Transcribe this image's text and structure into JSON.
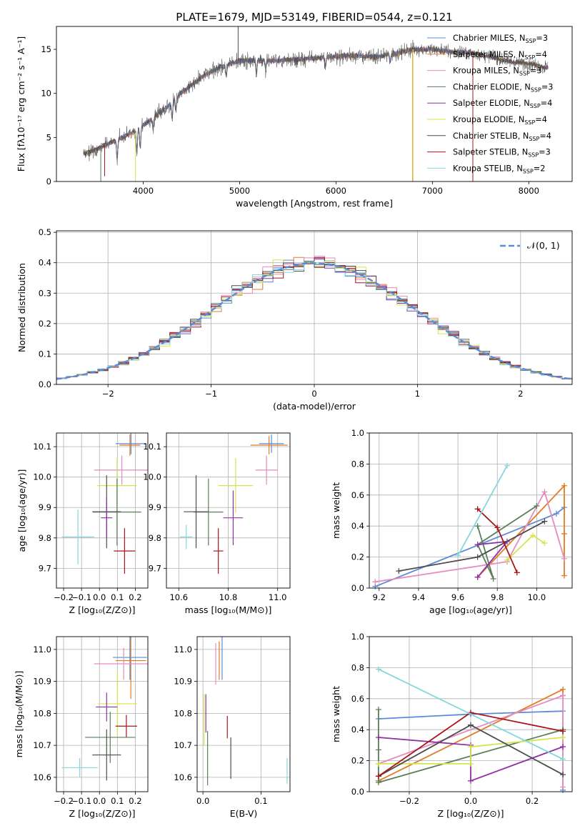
{
  "header": {
    "title": "PLATE=1679, MJD=53149, FIBERID=0544, z=0.121"
  },
  "colors": {
    "Chabrier MILES": "#5b8ad7",
    "Salpeter MILES": "#e07b26",
    "Kroupa MILES": "#e58bbf",
    "Chabrier ELODIE": "#5c7e5a",
    "Salpeter ELODIE": "#9130a5",
    "Kroupa ELODIE": "#d5e54e",
    "Chabrier STELIB": "#4d4d4d",
    "Salpeter STELIB": "#a8161b",
    "Kroupa STELIB": "#86d7dc",
    "grid": "#b0b0b0",
    "frame": "#000000"
  },
  "chart_data": [
    {
      "id": "spectrum",
      "type": "line",
      "title": "PLATE=1679, MJD=53149, FIBERID=0544, z=0.121",
      "xlabel": "wavelength [Angstrom, rest frame]",
      "ylabel": "Flux [fλ10⁻¹⁷ erg cm⁻² s⁻¹ A⁻¹]",
      "xlim": [
        3100,
        8450
      ],
      "ylim": [
        0,
        17.6
      ],
      "xticks": [
        4000,
        5000,
        6000,
        7000,
        8000
      ],
      "yticks": [
        0,
        5,
        10,
        15
      ],
      "grid": false,
      "legend_position": "upper right",
      "legend": [
        {
          "label": "Chabrier MILES, N",
          "sub": "SSP",
          "tail": "=3",
          "color": "#5b8ad7"
        },
        {
          "label": "Salpeter MILES, N",
          "sub": "SSP",
          "tail": "=4",
          "color": "#e07b26"
        },
        {
          "label": "Kroupa MILES, N",
          "sub": "SSP",
          "tail": "=3",
          "color": "#e58bbf"
        },
        {
          "label": "Chabrier ELODIE, N",
          "sub": "SSP",
          "tail": "=3",
          "color": "#5c7e5a"
        },
        {
          "label": "Salpeter ELODIE, N",
          "sub": "SSP",
          "tail": "=4",
          "color": "#9130a5"
        },
        {
          "label": "Kroupa ELODIE, N",
          "sub": "SSP",
          "tail": "=4",
          "color": "#d5e54e"
        },
        {
          "label": "Chabrier STELIB, N",
          "sub": "SSP",
          "tail": "=4",
          "color": "#4d4d4d"
        },
        {
          "label": "Salpeter STELIB, N",
          "sub": "SSP",
          "tail": "=3",
          "color": "#a8161b"
        },
        {
          "label": "Kroupa STELIB, N",
          "sub": "SSP",
          "tail": "=2",
          "color": "#86d7dc"
        }
      ],
      "continuum": {
        "x": [
          3400,
          3500,
          3700,
          3900,
          4000,
          4200,
          4400,
          4600,
          4800,
          5000,
          5200,
          5400,
          5600,
          5800,
          6000,
          6200,
          6400,
          6600,
          6800,
          7000,
          7200,
          7400,
          7600,
          7800,
          8000,
          8200
        ],
        "y": [
          3.2,
          3.6,
          4.6,
          5.6,
          6.4,
          8.0,
          10.1,
          11.8,
          13.0,
          13.7,
          13.8,
          13.7,
          13.9,
          14.0,
          14.2,
          14.3,
          14.1,
          14.5,
          15.0,
          15.0,
          14.7,
          14.6,
          14.2,
          13.6,
          13.4,
          12.9
        ]
      },
      "absorption_features": [
        {
          "x": 3730,
          "depth": 2.2
        },
        {
          "x": 3934,
          "depth": 2.6
        },
        {
          "x": 3969,
          "depth": 2.2
        },
        {
          "x": 4102,
          "depth": 1.2
        },
        {
          "x": 4300,
          "depth": 1.9
        },
        {
          "x": 4340,
          "depth": 1.4
        },
        {
          "x": 4861,
          "depth": 1.3
        },
        {
          "x": 5175,
          "depth": 1.6
        },
        {
          "x": 5270,
          "depth": 0.9
        },
        {
          "x": 5890,
          "depth": 1.2
        },
        {
          "x": 6563,
          "depth": 0.8
        }
      ],
      "spikes": [
        {
          "x": 3560,
          "to": 0,
          "color": "#5c7e5a"
        },
        {
          "x": 3600,
          "to": 0.6,
          "color": "#a8161b"
        },
        {
          "x": 3920,
          "to": 0,
          "color": "#d5e54e"
        },
        {
          "x": 4985,
          "to": 17.6,
          "color": "#4d4d4d"
        },
        {
          "x": 6795,
          "to": 0,
          "color": "#e07b26"
        },
        {
          "x": 6800,
          "to": 0,
          "color": "#d5e54e"
        },
        {
          "x": 7420,
          "to": 0,
          "color": "#a8161b"
        }
      ]
    },
    {
      "id": "residuals",
      "type": "step",
      "xlabel": "(data-model)/error",
      "ylabel": "Normed distribution",
      "xlim": [
        -2.5,
        2.5
      ],
      "ylim": [
        0,
        0.505
      ],
      "xticks": [
        -2,
        -1,
        0,
        1,
        2
      ],
      "xtick_labels": [
        "−2",
        "−1",
        "0",
        "1",
        "2"
      ],
      "yticks": [
        0.0,
        0.1,
        0.2,
        0.3,
        0.4,
        0.5
      ],
      "ytick_labels": [
        "0.0",
        "0.1",
        "0.2",
        "0.3",
        "0.4",
        "0.5"
      ],
      "grid": true,
      "legend": [
        {
          "label": "𝒩(0, 1)",
          "style": "dashed",
          "color": "#5b8ad7"
        }
      ],
      "legend_position": "upper right",
      "bin_edges": [
        -2.5,
        -2.4,
        -2.3,
        -2.2,
        -2.1,
        -2.0,
        -1.9,
        -1.8,
        -1.7,
        -1.6,
        -1.5,
        -1.4,
        -1.3,
        -1.2,
        -1.1,
        -1.0,
        -0.9,
        -0.8,
        -0.7,
        -0.6,
        -0.5,
        -0.4,
        -0.3,
        -0.2,
        -0.1,
        0.0,
        0.1,
        0.2,
        0.3,
        0.4,
        0.5,
        0.6,
        0.7,
        0.8,
        0.9,
        1.0,
        1.1,
        1.2,
        1.3,
        1.4,
        1.5,
        1.6,
        1.7,
        1.8,
        1.9,
        2.0,
        2.1,
        2.2,
        2.3,
        2.4,
        2.5
      ],
      "normal_curve": {
        "mean": 0,
        "std": 1,
        "style": "dashed"
      }
    },
    {
      "id": "age_vs_Z",
      "type": "errorbar",
      "xlabel": "Z [log₁₀(Z/Z⊙)]",
      "ylabel": "age  [log₁₀(age/yr)]",
      "xlim": [
        -0.24,
        0.27
      ],
      "ylim": [
        9.635,
        10.145
      ],
      "xticks": [
        -0.2,
        -0.1,
        0.0,
        0.1,
        0.2
      ],
      "xtick_labels": [
        "−0.2",
        "−0.1",
        "0.0",
        "0.1",
        "0.2"
      ],
      "yticks": [
        9.7,
        9.8,
        9.9,
        10.0,
        10.1
      ],
      "ytick_labels": [
        "9.7",
        "9.8",
        "9.9",
        "10.0",
        "10.1"
      ],
      "grid": true,
      "points": [
        {
          "model": "Chabrier MILES",
          "x": 0.176,
          "y": 10.11,
          "xerr": 0.085,
          "yerr": 0.035
        },
        {
          "model": "Salpeter MILES",
          "x": 0.17,
          "y": 10.105,
          "xerr": 0.058,
          "yerr": 0.035
        },
        {
          "model": "Kroupa MILES",
          "x": 0.125,
          "y": 10.023,
          "xerr": 0.155,
          "yerr": 0.048
        },
        {
          "model": "Kroupa ELODIE",
          "x": 0.098,
          "y": 9.972,
          "xerr": 0.11,
          "yerr": 0.09
        },
        {
          "model": "Chabrier ELODIE",
          "x": 0.098,
          "y": 9.885,
          "xerr": 0.135,
          "yerr": 0.11
        },
        {
          "model": "Chabrier STELIB",
          "x": 0.04,
          "y": 9.886,
          "xerr": 0.08,
          "yerr": 0.12
        },
        {
          "model": "Salpeter ELODIE",
          "x": 0.04,
          "y": 9.866,
          "xerr": 0.032,
          "yerr": 0.065
        },
        {
          "model": "Kroupa STELIB",
          "x": -0.12,
          "y": 9.803,
          "xerr": 0.09,
          "yerr": 0.09
        },
        {
          "model": "Salpeter STELIB",
          "x": 0.14,
          "y": 9.757,
          "xerr": 0.06,
          "yerr": 0.075
        }
      ]
    },
    {
      "id": "age_vs_mass",
      "type": "errorbar",
      "xlabel": "mass [log₁₀(M/M⊙)]",
      "xlim": [
        10.55,
        11.05
      ],
      "ylim": [
        9.635,
        10.145
      ],
      "xticks": [
        10.6,
        10.8,
        11.0
      ],
      "xtick_labels": [
        "10.6",
        "10.8",
        "11.0"
      ],
      "yticks": [
        9.7,
        9.8,
        9.9,
        10.0,
        10.1
      ],
      "ytick_labels": [
        "9.7",
        "9.8",
        "9.9",
        "10.0",
        "10.1"
      ],
      "grid": true,
      "points": [
        {
          "model": "Chabrier MILES",
          "x": 10.975,
          "y": 10.11,
          "xerr": 0.05,
          "yerr": 0.03
        },
        {
          "model": "Salpeter MILES",
          "x": 10.965,
          "y": 10.105,
          "xerr": 0.075,
          "yerr": 0.03
        },
        {
          "model": "Kroupa MILES",
          "x": 10.955,
          "y": 10.023,
          "xerr": 0.045,
          "yerr": 0.048
        },
        {
          "model": "Kroupa ELODIE",
          "x": 10.83,
          "y": 9.972,
          "xerr": 0.07,
          "yerr": 0.09
        },
        {
          "model": "Chabrier ELODIE",
          "x": 10.72,
          "y": 9.885,
          "xerr": 0.06,
          "yerr": 0.11
        },
        {
          "model": "Chabrier STELIB",
          "x": 10.67,
          "y": 9.886,
          "xerr": 0.05,
          "yerr": 0.12
        },
        {
          "model": "Salpeter ELODIE",
          "x": 10.82,
          "y": 9.866,
          "xerr": 0.04,
          "yerr": 0.09
        },
        {
          "model": "Kroupa STELIB",
          "x": 10.63,
          "y": 9.803,
          "xerr": 0.025,
          "yerr": 0.04
        },
        {
          "model": "Salpeter STELIB",
          "x": 10.76,
          "y": 9.757,
          "xerr": 0.02,
          "yerr": 0.075
        }
      ]
    },
    {
      "id": "weight_vs_age",
      "type": "line",
      "xlabel": "age  [log₁₀(age/yr)]",
      "ylabel": "mass weight",
      "xlim": [
        9.15,
        10.18
      ],
      "ylim": [
        0.0,
        1.0
      ],
      "xticks": [
        9.2,
        9.4,
        9.6,
        9.8,
        10.0
      ],
      "xtick_labels": [
        "9.2",
        "9.4",
        "9.6",
        "9.8",
        "10.0"
      ],
      "yticks": [
        0.0,
        0.2,
        0.4,
        0.6,
        0.8,
        1.0
      ],
      "ytick_labels": [
        "0.0",
        "0.2",
        "0.4",
        "0.6",
        "0.8",
        "1.0"
      ],
      "grid": true,
      "series": [
        {
          "model": "Chabrier MILES",
          "x": [
            9.18,
            10.1,
            10.14
          ],
          "y": [
            0.01,
            0.48,
            0.52
          ]
        },
        {
          "model": "Salpeter MILES",
          "x": [
            9.7,
            10.14,
            10.14,
            10.14
          ],
          "y": [
            0.07,
            0.66,
            0.35,
            0.08
          ]
        },
        {
          "model": "Kroupa MILES",
          "x": [
            9.18,
            9.85,
            10.04,
            10.14
          ],
          "y": [
            0.04,
            0.17,
            0.62,
            0.19
          ]
        },
        {
          "model": "Chabrier ELODIE",
          "x": [
            9.7,
            9.78,
            9.7,
            10.0
          ],
          "y": [
            0.4,
            0.06,
            0.28,
            0.53
          ]
        },
        {
          "model": "Salpeter ELODIE",
          "x": [
            9.7,
            9.85,
            9.7
          ],
          "y": [
            0.28,
            0.3,
            0.07
          ]
        },
        {
          "model": "Kroupa ELODIE",
          "x": [
            9.85,
            9.98,
            10.04
          ],
          "y": [
            0.18,
            0.34,
            0.29
          ]
        },
        {
          "model": "Chabrier STELIB",
          "x": [
            9.3,
            9.7,
            10.04
          ],
          "y": [
            0.11,
            0.2,
            0.43
          ]
        },
        {
          "model": "Salpeter STELIB",
          "x": [
            9.7,
            9.8,
            9.9
          ],
          "y": [
            0.51,
            0.39,
            0.1
          ]
        },
        {
          "model": "Kroupa STELIB",
          "x": [
            9.6,
            9.85
          ],
          "y": [
            0.21,
            0.79
          ]
        }
      ]
    },
    {
      "id": "mass_vs_Z",
      "type": "errorbar",
      "xlabel": "Z [log₁₀(Z/Z⊙)]",
      "ylabel": "mass [log₁₀(M/M⊙)]",
      "xlim": [
        -0.24,
        0.27
      ],
      "ylim": [
        10.555,
        11.04
      ],
      "xticks": [
        -0.2,
        -0.1,
        0.0,
        0.1,
        0.2
      ],
      "xtick_labels": [
        "−0.2",
        "−0.1",
        "0.0",
        "0.1",
        "0.2"
      ],
      "yticks": [
        10.6,
        10.7,
        10.8,
        10.9,
        11.0
      ],
      "ytick_labels": [
        "10.6",
        "10.7",
        "10.8",
        "10.9",
        "11.0"
      ],
      "grid": true,
      "points": [
        {
          "model": "Chabrier MILES",
          "x": 0.17,
          "y": 10.975,
          "xerr": 0.095,
          "yerr": 0.07
        },
        {
          "model": "Salpeter MILES",
          "x": 0.175,
          "y": 10.965,
          "xerr": 0.085,
          "yerr": 0.12
        },
        {
          "model": "Kroupa MILES",
          "x": 0.135,
          "y": 10.955,
          "xerr": 0.165,
          "yerr": 0.05
        },
        {
          "model": "Kroupa ELODIE",
          "x": 0.1,
          "y": 10.83,
          "xerr": 0.11,
          "yerr": 0.1
        },
        {
          "model": "Salpeter ELODIE",
          "x": 0.04,
          "y": 10.82,
          "xerr": 0.06,
          "yerr": 0.045
        },
        {
          "model": "Salpeter STELIB",
          "x": 0.15,
          "y": 10.76,
          "xerr": 0.06,
          "yerr": 0.035
        },
        {
          "model": "Chabrier ELODIE",
          "x": 0.06,
          "y": 10.725,
          "xerr": 0.14,
          "yerr": 0.08
        },
        {
          "model": "Chabrier STELIB",
          "x": 0.04,
          "y": 10.67,
          "xerr": 0.08,
          "yerr": 0.08
        },
        {
          "model": "Kroupa STELIB",
          "x": -0.11,
          "y": 10.63,
          "xerr": 0.1,
          "yerr": 0.03
        }
      ]
    },
    {
      "id": "mass_vs_EBV",
      "type": "errorbar",
      "xlabel": "E(B-V)",
      "xlim": [
        -0.01,
        0.15
      ],
      "ylim": [
        10.555,
        11.04
      ],
      "xticks": [
        0.0,
        0.1
      ],
      "xtick_labels": [
        "0.0",
        "0.1"
      ],
      "yticks": [
        10.6,
        10.7,
        10.8,
        10.9,
        11.0
      ],
      "ytick_labels": [
        "10.6",
        "10.7",
        "10.8",
        "10.9",
        "11.0"
      ],
      "grid": true,
      "points": [
        {
          "model": "Chabrier MILES",
          "x": 0.033,
          "y": 10.975,
          "xerr": 0.0,
          "yerr": 0.07
        },
        {
          "model": "Salpeter MILES",
          "x": 0.028,
          "y": 10.965,
          "xerr": 0.0,
          "yerr": 0.06
        },
        {
          "model": "Kroupa MILES",
          "x": 0.022,
          "y": 10.955,
          "xerr": 0.0,
          "yerr": 0.065
        },
        {
          "model": "Salpeter ELODIE",
          "x": 0.005,
          "y": 10.8,
          "xerr": 0.0,
          "yerr": 0.06
        },
        {
          "model": "Kroupa ELODIE",
          "x": 0.002,
          "y": 10.78,
          "xerr": 0.0,
          "yerr": 0.08
        },
        {
          "model": "Salpeter STELIB",
          "x": 0.042,
          "y": 10.757,
          "xerr": 0.0,
          "yerr": 0.035
        },
        {
          "model": "Chabrier ELODIE",
          "x": 0.008,
          "y": 10.66,
          "xerr": 0.0,
          "yerr": 0.085
        },
        {
          "model": "Chabrier STELIB",
          "x": 0.048,
          "y": 10.66,
          "xerr": 0.0,
          "yerr": 0.065
        },
        {
          "model": "Kroupa STELIB",
          "x": 0.145,
          "y": 10.62,
          "xerr": 0.0,
          "yerr": 0.04
        }
      ]
    },
    {
      "id": "weight_vs_Z",
      "type": "line",
      "xlabel": "Z [log₁₀(Z/Z⊙)]",
      "ylabel": "mass weight",
      "xlim": [
        -0.33,
        0.33
      ],
      "ylim": [
        0.0,
        1.0
      ],
      "xticks": [
        -0.2,
        0.0,
        0.2
      ],
      "xtick_labels": [
        "−0.2",
        "0.0",
        "0.2"
      ],
      "yticks": [
        0.0,
        0.2,
        0.4,
        0.6,
        0.8,
        1.0
      ],
      "ytick_labels": [
        "0.0",
        "0.2",
        "0.4",
        "0.6",
        "0.8",
        "1.0"
      ],
      "grid": true,
      "series": [
        {
          "model": "Chabrier MILES",
          "x": [
            -0.3,
            0.0,
            0.3,
            0.3
          ],
          "y": [
            0.47,
            0.5,
            0.52,
            0.01
          ]
        },
        {
          "model": "Salpeter MILES",
          "x": [
            -0.3,
            0.3,
            0.3
          ],
          "y": [
            0.07,
            0.66,
            0.62
          ]
        },
        {
          "model": "Kroupa MILES",
          "x": [
            -0.3,
            0.3,
            0.3
          ],
          "y": [
            0.18,
            0.62,
            0.03
          ]
        },
        {
          "model": "Chabrier ELODIE",
          "x": [
            -0.3,
            -0.3,
            -0.3,
            0.3
          ],
          "y": [
            0.53,
            0.27,
            0.06,
            0.4
          ]
        },
        {
          "model": "Salpeter ELODIE",
          "x": [
            -0.3,
            0.0,
            0.0,
            0.3
          ],
          "y": [
            0.35,
            0.3,
            0.07,
            0.29
          ]
        },
        {
          "model": "Kroupa ELODIE",
          "x": [
            -0.3,
            0.0,
            0.0,
            0.3
          ],
          "y": [
            0.18,
            0.18,
            0.29,
            0.35
          ]
        },
        {
          "model": "Chabrier STELIB",
          "x": [
            -0.3,
            0.0,
            0.3
          ],
          "y": [
            0.1,
            0.43,
            0.11
          ]
        },
        {
          "model": "Salpeter STELIB",
          "x": [
            -0.3,
            0.0,
            0.3
          ],
          "y": [
            0.1,
            0.51,
            0.39
          ]
        },
        {
          "model": "Kroupa STELIB",
          "x": [
            -0.3,
            0.3
          ],
          "y": [
            0.79,
            0.21
          ]
        }
      ]
    }
  ]
}
